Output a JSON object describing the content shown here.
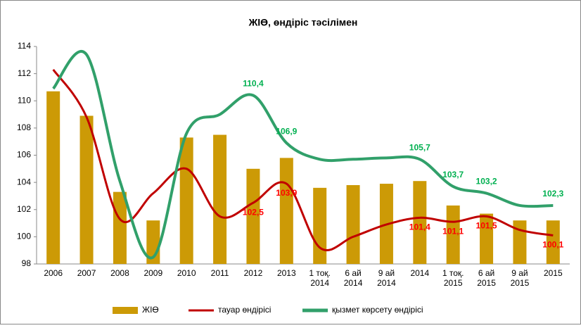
{
  "chart_data": {
    "type": "bar_line",
    "title": "ЖІӨ, өндіріс тәсілімен",
    "categories": [
      "2006",
      "2007",
      "2008",
      "2009",
      "2010",
      "2011",
      "2012",
      "2013",
      "1 тоқ.\n2014",
      "6 ай\n2014",
      "9 ай\n2014",
      "2014",
      "1 тоқ.\n2015",
      "6 ай\n2015",
      "9 ай\n2015",
      "2015"
    ],
    "series": [
      {
        "name": "ЖІӨ",
        "kind": "bar",
        "color": "#cc9a06",
        "values": [
          110.7,
          108.9,
          103.3,
          101.2,
          107.3,
          107.5,
          105.0,
          105.8,
          103.6,
          103.8,
          103.9,
          104.1,
          102.3,
          101.7,
          101.2,
          101.2
        ]
      },
      {
        "name": "тауар өндірісі",
        "kind": "line",
        "color": "#c00000",
        "label_color": "#ff0000",
        "values": [
          112.3,
          108.8,
          101.3,
          103.2,
          105.0,
          101.5,
          102.5,
          103.9,
          99.2,
          100.0,
          100.9,
          101.4,
          101.1,
          101.5,
          100.5,
          100.1
        ],
        "value_labels": [
          null,
          null,
          null,
          null,
          null,
          null,
          "102,5",
          "103,9",
          null,
          null,
          null,
          "101,4",
          "101,1",
          "101,5",
          null,
          "100,1"
        ]
      },
      {
        "name": "қызмет көрсету өндірісі",
        "kind": "line",
        "color": "#31a06a",
        "label_color": "#00b050",
        "values": [
          110.9,
          113.4,
          104.1,
          98.5,
          107.6,
          109.0,
          110.4,
          106.9,
          105.7,
          105.7,
          105.8,
          105.7,
          103.7,
          103.2,
          102.3,
          102.3
        ],
        "value_labels": [
          null,
          null,
          null,
          null,
          null,
          null,
          "110,4",
          "106,9",
          null,
          null,
          null,
          "105,7",
          "103,7",
          "103,2",
          null,
          "102,3"
        ]
      }
    ],
    "ylim": [
      98,
      114
    ],
    "yticks": [
      98,
      100,
      102,
      104,
      106,
      108,
      110,
      112,
      114
    ],
    "grid": false,
    "legend": "bottom"
  }
}
